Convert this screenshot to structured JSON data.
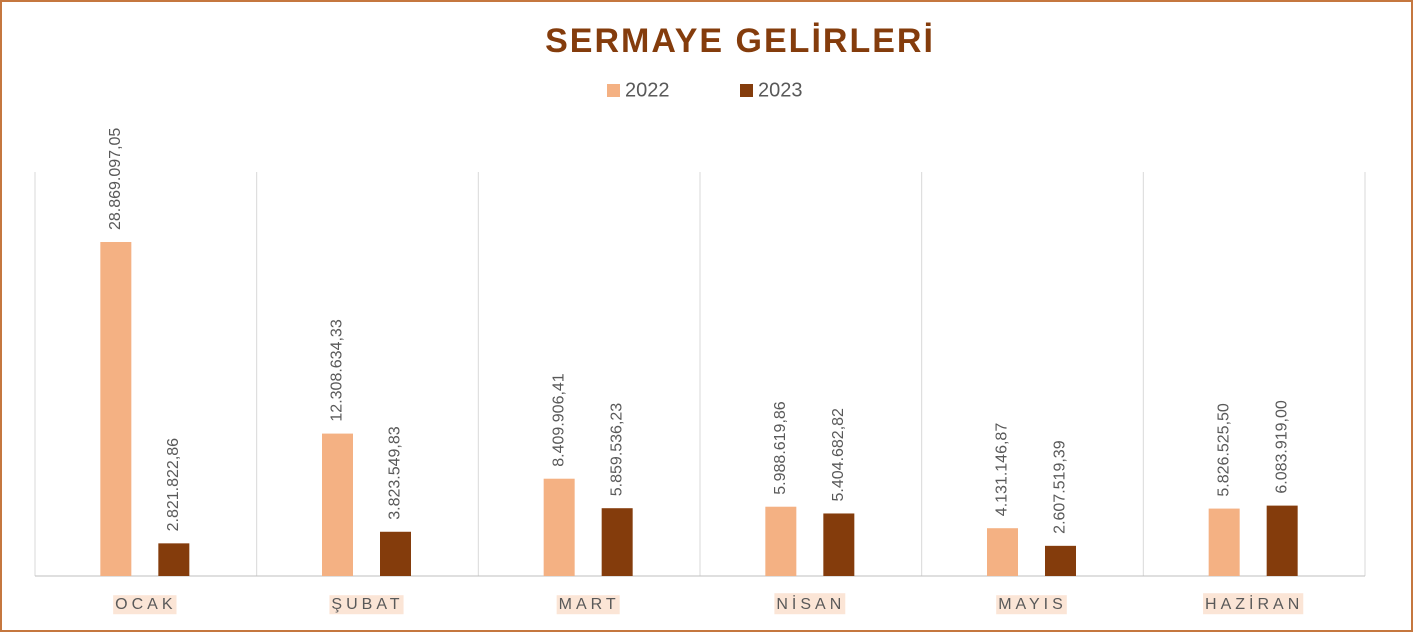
{
  "chart_data": {
    "type": "bar",
    "title": "SERMAYE GELİRLERİ",
    "categories": [
      "OCAK",
      "ŞUBAT",
      "MART",
      "NİSAN",
      "MAYIS",
      "HAZİRAN"
    ],
    "series": [
      {
        "name": "2022",
        "color": "#f4b183",
        "values": [
          28869097.05,
          12308634.33,
          8409906.41,
          5988619.86,
          4131146.87,
          5826525.5
        ],
        "value_labels": [
          "28.869.097,05",
          "12.308.634,33",
          "8.409.906,41",
          "5.988.619,86",
          "4.131.146,87",
          "5.826.525,50"
        ]
      },
      {
        "name": "2023",
        "color": "#843c0c",
        "values": [
          2821822.86,
          3823549.83,
          5859536.23,
          5404682.82,
          2607519.39,
          6083919.0
        ],
        "value_labels": [
          "2.821.822,86",
          "3.823.549,83",
          "5.859.536,23",
          "5.404.682,82",
          "2.607.519,39",
          "6.083.919,00"
        ]
      }
    ],
    "legend": "top"
  }
}
